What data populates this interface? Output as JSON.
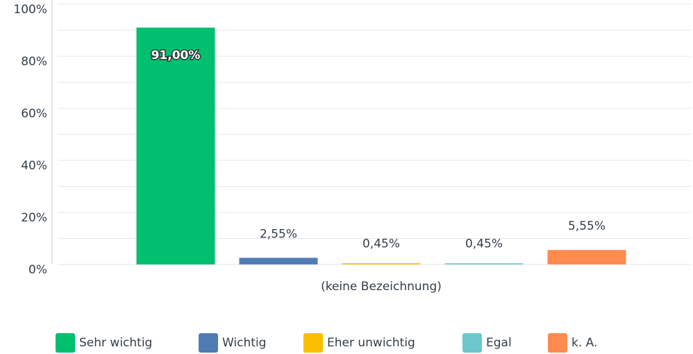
{
  "chart_data": {
    "type": "bar",
    "categories": [
      "(keine Bezeichnung)"
    ],
    "series": [
      {
        "name": "Sehr wichtig",
        "color": "#00bf6f",
        "values": [
          91
        ],
        "value_labels": [
          "91,00%"
        ]
      },
      {
        "name": "Wichtig",
        "color": "#507cb6",
        "values": [
          2.55
        ],
        "value_labels": [
          "2,55%"
        ]
      },
      {
        "name": "Eher unwichtig",
        "color": "#f9be00",
        "values": [
          0.45
        ],
        "value_labels": [
          "0,45%"
        ]
      },
      {
        "name": "Egal",
        "color": "#6bc8cd",
        "values": [
          0.45
        ],
        "value_labels": [
          "0,45%"
        ]
      },
      {
        "name": "k. A.",
        "color": "#ff8b4f",
        "values": [
          5.55
        ],
        "value_labels": [
          "5,55%"
        ]
      }
    ],
    "ylim": [
      0,
      100
    ],
    "yticks": [
      {
        "value": 0,
        "label": "0%"
      },
      {
        "value": 20,
        "label": "20%"
      },
      {
        "value": 40,
        "label": "40%"
      },
      {
        "value": 60,
        "label": "60%"
      },
      {
        "value": 80,
        "label": "80%"
      },
      {
        "value": 100,
        "label": "100%"
      }
    ],
    "yticks_minor": [
      10,
      30,
      50,
      70,
      90
    ],
    "grid": true,
    "legend": "bottom"
  }
}
